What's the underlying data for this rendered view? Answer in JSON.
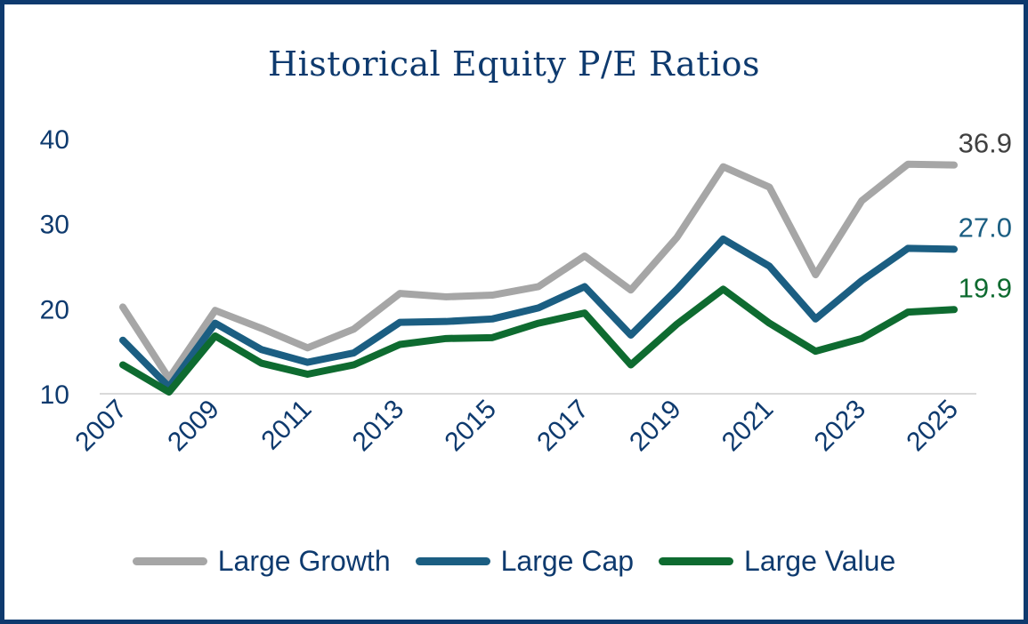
{
  "chart_data": {
    "type": "line",
    "title": "Historical Equity P/E Ratios",
    "xlabel": "",
    "ylabel": "",
    "x": [
      2007,
      2008,
      2009,
      2010,
      2011,
      2012,
      2013,
      2014,
      2015,
      2016,
      2017,
      2018,
      2019,
      2020,
      2021,
      2022,
      2023,
      2024,
      2025
    ],
    "x_tick_labels": [
      "2007",
      "2009",
      "2011",
      "2013",
      "2015",
      "2017",
      "2019",
      "2021",
      "2023",
      "2025"
    ],
    "ylim": [
      10,
      40
    ],
    "y_tick_labels": [
      "10",
      "20",
      "30",
      "40"
    ],
    "grid": false,
    "legend_position": "bottom",
    "series": [
      {
        "name": "Large Growth",
        "color": "#a6a6a6",
        "values": [
          20.2,
          11.8,
          19.8,
          17.7,
          15.4,
          17.6,
          21.8,
          21.4,
          21.6,
          22.6,
          26.2,
          22.2,
          28.4,
          36.7,
          34.3,
          24.0,
          32.7,
          37.0,
          36.9
        ],
        "end_label": "36.9"
      },
      {
        "name": "Large Cap",
        "color": "#1b5e82",
        "values": [
          16.3,
          10.8,
          18.3,
          15.2,
          13.7,
          14.8,
          18.4,
          18.5,
          18.8,
          20.1,
          22.6,
          16.9,
          22.3,
          28.2,
          25.0,
          18.8,
          23.3,
          27.1,
          27.0
        ],
        "end_label": "27.0"
      },
      {
        "name": "Large Value",
        "color": "#0e6b30",
        "values": [
          13.4,
          10.2,
          16.8,
          13.6,
          12.3,
          13.4,
          15.8,
          16.5,
          16.6,
          18.3,
          19.5,
          13.4,
          18.2,
          22.3,
          18.3,
          15.0,
          16.5,
          19.6,
          19.9
        ],
        "end_label": "19.9"
      }
    ]
  }
}
